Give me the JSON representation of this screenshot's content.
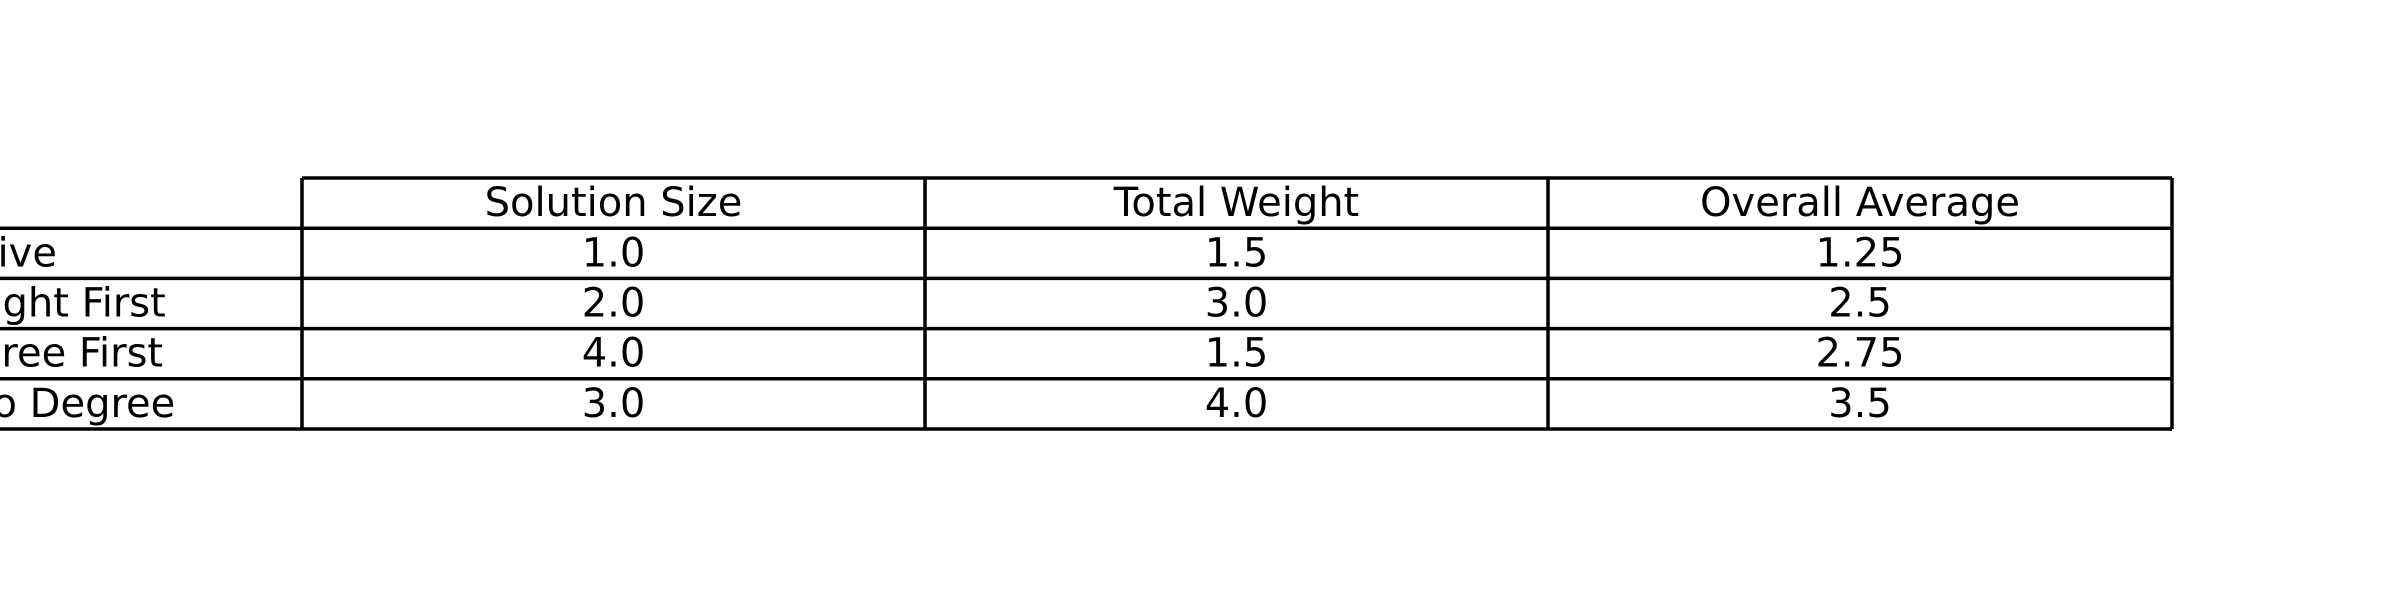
{
  "chart_data": {
    "type": "table",
    "columns": [
      "Solution Size",
      "Total Weight",
      "Overall Average"
    ],
    "rows": [
      {
        "label": "Naive",
        "values": [
          "1.0",
          "1.5",
          "1.25"
        ]
      },
      {
        "label": "Max Weight First",
        "values": [
          "2.0",
          "3.0",
          "2.5"
        ]
      },
      {
        "label": "Min Degree First",
        "values": [
          "4.0",
          "1.5",
          "2.75"
        ]
      },
      {
        "label": "Weight to Degree",
        "values": [
          "3.0",
          "4.0",
          "3.5"
        ]
      }
    ]
  }
}
